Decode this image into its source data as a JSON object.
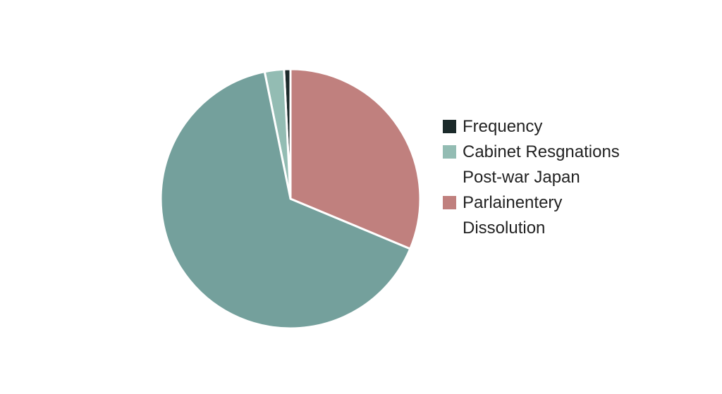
{
  "chart_data": {
    "type": "pie",
    "categories": [
      "Frequency",
      "Cabinet Resgnations Post-war Japan",
      null,
      "Parlainentery Dissolution"
    ],
    "values": [
      0.8,
      2.4,
      65.5,
      31.3
    ],
    "colors": [
      "#1b2a2a",
      "#93bcb3",
      "#74a09c",
      "#c0807e"
    ],
    "direction": "counterclockwise",
    "start": "top",
    "legend": "right"
  }
}
